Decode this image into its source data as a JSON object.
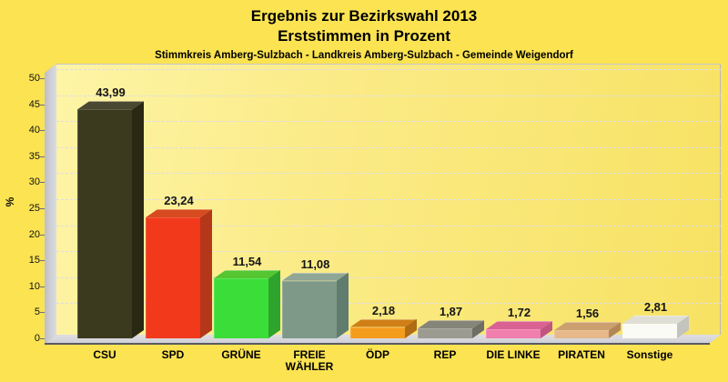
{
  "title": {
    "line1": "Ergebnis zur Bezirkswahl 2013",
    "line2": "Erststimmen in Prozent"
  },
  "subtitle": "Stimmkreis Amberg-Sulzbach - Landkreis Amberg-Sulzbach - Gemeinde Weigendorf",
  "colors": {
    "page_background": "#FBE351",
    "plot_background_light": "#FDF4A6",
    "plot_background_dark": "#F7E263",
    "wall": "#C9C9D1",
    "floor": "#D6D6DC",
    "gridline": "#DDDDE8",
    "text": "#000000"
  },
  "chart_data": {
    "type": "bar",
    "title": "Ergebnis zur Bezirkswahl 2013 — Erststimmen in Prozent",
    "subtitle": "Stimmkreis Amberg-Sulzbach - Landkreis Amberg-Sulzbach - Gemeinde Weigendorf",
    "categories": [
      "CSU",
      "SPD",
      "GRÜNE",
      "FREIE WÄHLER",
      "ÖDP",
      "REP",
      "DIE LINKE",
      "PIRATEN",
      "Sonstige"
    ],
    "values": [
      43.99,
      23.24,
      11.54,
      11.08,
      2.18,
      1.87,
      1.72,
      1.56,
      2.81
    ],
    "value_labels": [
      "43,99",
      "23,24",
      "11,54",
      "11,08",
      "2,18",
      "1,87",
      "1,72",
      "1,56",
      "2,81"
    ],
    "xlabel": "",
    "ylabel": "%",
    "ylim": [
      0,
      50
    ],
    "yticks": [
      0,
      5,
      10,
      15,
      20,
      25,
      30,
      35,
      40,
      45,
      50
    ],
    "grid": true,
    "legend": false,
    "bar_style": "3d",
    "colors": [
      {
        "front": "#3C3A1E",
        "top": "#4A4830",
        "side": "#292812"
      },
      {
        "front": "#F2391B",
        "top": "#D64B1F",
        "side": "#B4371A"
      },
      {
        "front": "#3BDE39",
        "top": "#54C631",
        "side": "#2FA42C"
      },
      {
        "front": "#7E9987",
        "top": "#90A795",
        "side": "#5F7C6E"
      },
      {
        "front": "#F49D1C",
        "top": "#CF7F16",
        "side": "#B06C12"
      },
      {
        "front": "#9B9B91",
        "top": "#858579",
        "side": "#6E6E64"
      },
      {
        "front": "#F07FAE",
        "top": "#D96292",
        "side": "#C05580"
      },
      {
        "front": "#E6B88A",
        "top": "#CC9F70",
        "side": "#B28659"
      },
      {
        "front": "#FBFBF6",
        "top": "#DFDFD8",
        "side": "#C4C4BE"
      }
    ]
  }
}
